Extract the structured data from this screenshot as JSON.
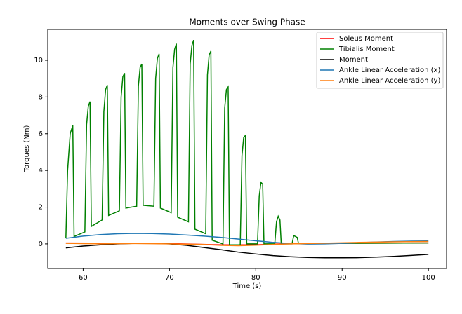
{
  "chart_data": {
    "type": "line",
    "title": "Moments over Swing Phase",
    "xlabel": "Time (s)",
    "ylabel": "Torques (Nm)",
    "xlim": [
      55.9,
      102.1
    ],
    "ylim": [
      -1.34,
      11.68
    ],
    "xticks": [
      60,
      70,
      80,
      90,
      100
    ],
    "yticks": [
      0,
      2,
      4,
      6,
      8,
      10
    ],
    "legend": "upper right",
    "series": [
      {
        "name": "Soleus Moment",
        "color": "#ff0000",
        "x": [
          58,
          70,
          76,
          80,
          84,
          100
        ],
        "values": [
          0.05,
          0.02,
          -0.05,
          -0.05,
          0.02,
          0.05
        ]
      },
      {
        "name": "Tibialis Moment",
        "color": "#008000",
        "x": [
          58.0,
          58.2,
          58.5,
          58.8,
          58.95,
          60.2,
          60.4,
          60.6,
          60.8,
          60.95,
          62.2,
          62.4,
          62.6,
          62.8,
          62.95,
          64.2,
          64.4,
          64.6,
          64.8,
          64.95,
          66.2,
          66.4,
          66.6,
          66.8,
          66.95,
          68.2,
          68.4,
          68.6,
          68.8,
          68.95,
          70.2,
          70.4,
          70.6,
          70.8,
          70.95,
          72.2,
          72.4,
          72.6,
          72.8,
          72.95,
          74.2,
          74.4,
          74.6,
          74.8,
          74.95,
          76.2,
          76.4,
          76.6,
          76.8,
          76.95,
          78.2,
          78.4,
          78.6,
          78.8,
          78.95,
          80.2,
          80.4,
          80.6,
          80.8,
          80.95,
          82.2,
          82.4,
          82.6,
          82.8,
          82.95,
          84.2,
          84.4,
          84.8,
          84.95,
          100
        ],
        "values": [
          0.3,
          4.0,
          6.0,
          6.45,
          0.4,
          0.65,
          6.5,
          7.5,
          7.75,
          0.95,
          1.3,
          7.2,
          8.4,
          8.65,
          1.55,
          1.8,
          8.0,
          9.1,
          9.3,
          1.95,
          2.05,
          8.6,
          9.6,
          9.8,
          2.1,
          2.05,
          9.0,
          10.1,
          10.35,
          1.95,
          1.7,
          9.6,
          10.6,
          10.9,
          1.45,
          1.2,
          9.8,
          10.8,
          11.1,
          0.8,
          0.55,
          9.2,
          10.3,
          10.5,
          0.2,
          0.0,
          7.4,
          8.4,
          8.55,
          -0.05,
          -0.05,
          4.8,
          5.8,
          5.9,
          0.0,
          0.0,
          2.6,
          3.35,
          3.25,
          0.0,
          0.0,
          1.2,
          1.5,
          1.3,
          0.0,
          0.0,
          0.45,
          0.35,
          0.02,
          0.05
        ]
      },
      {
        "name": "Moment",
        "color": "#000000",
        "x": [
          58,
          60,
          62,
          64,
          66,
          68,
          70,
          72,
          74,
          76,
          78,
          80,
          82,
          84,
          86,
          88,
          90,
          92,
          94,
          96,
          98,
          100
        ],
        "values": [
          -0.22,
          -0.12,
          -0.05,
          0.0,
          0.03,
          0.03,
          0.0,
          -0.08,
          -0.2,
          -0.32,
          -0.45,
          -0.55,
          -0.64,
          -0.7,
          -0.74,
          -0.76,
          -0.76,
          -0.75,
          -0.72,
          -0.68,
          -0.63,
          -0.57
        ]
      },
      {
        "name": "Ankle Linear Acceleration (x)",
        "color": "#1f77b4",
        "x": [
          58,
          60,
          62,
          64,
          66,
          68,
          70,
          72,
          74,
          76,
          78,
          80,
          82,
          84,
          86,
          88,
          90,
          92,
          94,
          96,
          98,
          100
        ],
        "values": [
          0.3,
          0.42,
          0.5,
          0.55,
          0.57,
          0.56,
          0.53,
          0.48,
          0.42,
          0.35,
          0.26,
          0.17,
          0.08,
          0.02,
          -0.01,
          0.0,
          0.03,
          0.07,
          0.1,
          0.13,
          0.15,
          0.16
        ]
      },
      {
        "name": "Ankle Linear Acceleration (y)",
        "color": "#ff7f0e",
        "x": [
          58,
          62,
          66,
          70,
          74,
          76,
          78,
          80,
          82,
          84,
          88,
          92,
          96,
          100
        ],
        "values": [
          0.03,
          0.0,
          0.02,
          0.0,
          -0.03,
          -0.08,
          -0.1,
          -0.07,
          -0.03,
          0.0,
          0.04,
          0.08,
          0.11,
          0.13
        ]
      }
    ]
  }
}
